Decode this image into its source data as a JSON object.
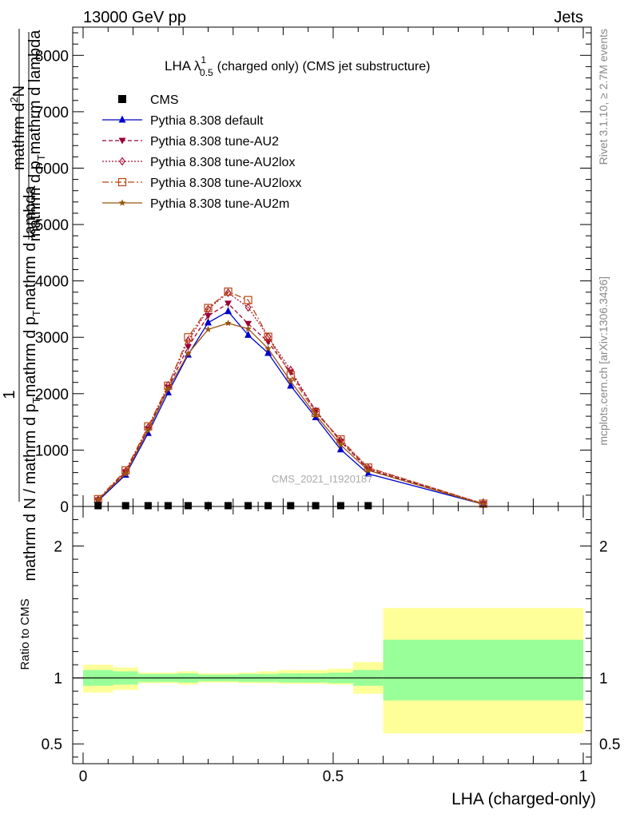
{
  "header": {
    "left": "13000 GeV pp",
    "right": "Jets"
  },
  "side": {
    "rivet": "Rivet 3.1.10, ≥ 2.7M events",
    "mcplots": "mcplots.cern.ch [arXiv:1306.3436]"
  },
  "watermark": "CMS_2021_I1920187",
  "colors": {
    "cms": "#000000",
    "default": "#0000cc",
    "au2": "#990033",
    "au2lox": "#aa1133",
    "au2loxx": "#bb4411",
    "au2m": "#995511",
    "band_inner": "#99ff99",
    "band_outer": "#ffff99"
  },
  "chart_data": [
    {
      "type": "line",
      "title_main": "LHA λ",
      "title_sup": "1",
      "title_sub": "0.5",
      "title_rest": "(charged only) (CMS jet substructure)",
      "ylabel_parts": [
        "1",
        "mathrm d N / mathrm d p",
        "T",
        "mathrm d p",
        "T",
        "mathrm d lambda",
        "mathrm d",
        "2",
        "N",
        "mathrm d p",
        "T",
        "mathrm d lambda"
      ],
      "xlim": [
        0,
        1
      ],
      "ylim": [
        0,
        8500
      ],
      "yticks": [
        0,
        1000,
        2000,
        3000,
        4000,
        5000,
        6000,
        7000,
        8000
      ],
      "ytick_labels": [
        "0",
        "1000",
        "2000",
        "3000",
        "4000",
        "5000",
        "6000",
        "7000",
        "8000"
      ],
      "legend_position": "top-left",
      "cms": {
        "name": "CMS",
        "x": [
          0.03,
          0.085,
          0.13,
          0.17,
          0.21,
          0.25,
          0.29,
          0.33,
          0.37,
          0.415,
          0.465,
          0.515,
          0.57
        ],
        "y": [
          0,
          0,
          0,
          0,
          0,
          0,
          0,
          0,
          0,
          0,
          0,
          0,
          0
        ]
      },
      "series": [
        {
          "name": "Pythia 8.308 default",
          "key": "default",
          "marker": "triangle-up",
          "dash": "",
          "x": [
            0.03,
            0.085,
            0.13,
            0.17,
            0.21,
            0.25,
            0.29,
            0.33,
            0.37,
            0.415,
            0.465,
            0.515,
            0.57,
            0.8
          ],
          "y": [
            100,
            560,
            1300,
            2020,
            2690,
            3260,
            3460,
            3040,
            2720,
            2140,
            1580,
            1010,
            580,
            40
          ]
        },
        {
          "name": "Pythia 8.308 tune-AU2",
          "key": "au2",
          "marker": "triangle-down",
          "dash": "5,3",
          "x": [
            0.03,
            0.085,
            0.13,
            0.17,
            0.21,
            0.25,
            0.29,
            0.33,
            0.37,
            0.415,
            0.465,
            0.515,
            0.57,
            0.8
          ],
          "y": [
            110,
            610,
            1370,
            2110,
            2830,
            3380,
            3600,
            3240,
            2920,
            2380,
            1700,
            1150,
            660,
            45
          ]
        },
        {
          "name": "Pythia 8.308 tune-AU2lox",
          "key": "au2lox",
          "marker": "diamond",
          "dash": "2,2",
          "x": [
            0.03,
            0.085,
            0.13,
            0.17,
            0.21,
            0.25,
            0.29,
            0.33,
            0.37,
            0.415,
            0.465,
            0.515,
            0.57,
            0.8
          ],
          "y": [
            120,
            620,
            1400,
            2150,
            2940,
            3500,
            3790,
            3530,
            3010,
            2420,
            1690,
            1170,
            680,
            50
          ]
        },
        {
          "name": "Pythia 8.308 tune-AU2loxx",
          "key": "au2loxx",
          "marker": "square-open",
          "dash": "8,3,2,3",
          "x": [
            0.03,
            0.085,
            0.13,
            0.17,
            0.21,
            0.25,
            0.29,
            0.33,
            0.37,
            0.415,
            0.465,
            0.515,
            0.57,
            0.8
          ],
          "y": [
            130,
            640,
            1420,
            2140,
            3000,
            3520,
            3810,
            3660,
            3010,
            2330,
            1660,
            1190,
            690,
            50
          ]
        },
        {
          "name": "Pythia 8.308 tune-AU2m",
          "key": "au2m",
          "marker": "star",
          "dash": "",
          "x": [
            0.03,
            0.085,
            0.13,
            0.17,
            0.21,
            0.25,
            0.29,
            0.33,
            0.37,
            0.415,
            0.465,
            0.515,
            0.57,
            0.8
          ],
          "y": [
            120,
            580,
            1350,
            2080,
            2710,
            3140,
            3250,
            3150,
            2800,
            2220,
            1620,
            1090,
            640,
            40
          ]
        }
      ]
    },
    {
      "type": "area",
      "ylabel": "Ratio to CMS",
      "xlabel": "LHA (charged-only)",
      "xlim": [
        0,
        1
      ],
      "ylim": [
        0.35,
        2.3
      ],
      "yticks": [
        0.5,
        1,
        2
      ],
      "ytick_labels": [
        "0.5",
        "1",
        "2"
      ],
      "xticks": [
        0,
        0.5,
        1
      ],
      "xtick_labels": [
        "0",
        "0.5",
        "1"
      ],
      "bins": [
        {
          "x0": 0.0,
          "x1": 0.06,
          "inner": [
            0.94,
            1.06
          ],
          "outer": [
            0.89,
            1.1
          ]
        },
        {
          "x0": 0.06,
          "x1": 0.11,
          "inner": [
            0.95,
            1.05
          ],
          "outer": [
            0.91,
            1.08
          ]
        },
        {
          "x0": 0.11,
          "x1": 0.15,
          "inner": [
            0.97,
            1.03
          ],
          "outer": [
            0.96,
            1.04
          ]
        },
        {
          "x0": 0.15,
          "x1": 0.19,
          "inner": [
            0.97,
            1.03
          ],
          "outer": [
            0.96,
            1.04
          ]
        },
        {
          "x0": 0.19,
          "x1": 0.23,
          "inner": [
            0.965,
            1.035
          ],
          "outer": [
            0.95,
            1.05
          ]
        },
        {
          "x0": 0.23,
          "x1": 0.27,
          "inner": [
            0.975,
            1.025
          ],
          "outer": [
            0.965,
            1.035
          ]
        },
        {
          "x0": 0.27,
          "x1": 0.31,
          "inner": [
            0.975,
            1.025
          ],
          "outer": [
            0.965,
            1.035
          ]
        },
        {
          "x0": 0.31,
          "x1": 0.35,
          "inner": [
            0.97,
            1.03
          ],
          "outer": [
            0.96,
            1.04
          ]
        },
        {
          "x0": 0.35,
          "x1": 0.39,
          "inner": [
            0.97,
            1.03
          ],
          "outer": [
            0.96,
            1.05
          ]
        },
        {
          "x0": 0.39,
          "x1": 0.44,
          "inner": [
            0.965,
            1.035
          ],
          "outer": [
            0.955,
            1.06
          ]
        },
        {
          "x0": 0.44,
          "x1": 0.49,
          "inner": [
            0.965,
            1.035
          ],
          "outer": [
            0.955,
            1.06
          ]
        },
        {
          "x0": 0.49,
          "x1": 0.54,
          "inner": [
            0.96,
            1.04
          ],
          "outer": [
            0.95,
            1.07
          ]
        },
        {
          "x0": 0.54,
          "x1": 0.6,
          "inner": [
            0.94,
            1.06
          ],
          "outer": [
            0.88,
            1.12
          ]
        },
        {
          "x0": 0.6,
          "x1": 1.0,
          "inner": [
            0.83,
            1.29
          ],
          "outer": [
            0.58,
            1.53
          ]
        }
      ]
    }
  ]
}
